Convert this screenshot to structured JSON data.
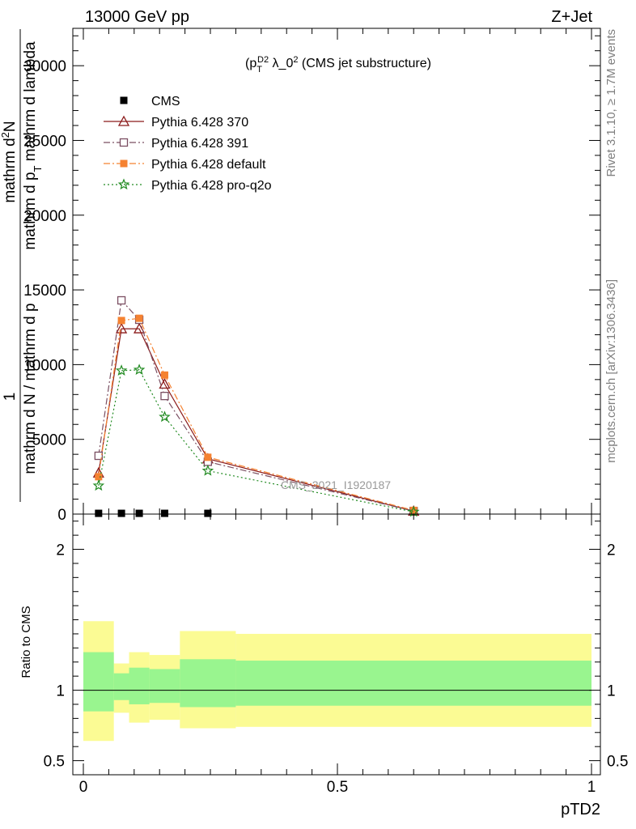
{
  "header": {
    "left": "13000 GeV pp",
    "right": "Z+Jet"
  },
  "side_labels": {
    "rivet": "Rivet 3.1.10, ≥ 1.7M events",
    "mcplots": "mcplots.cern.ch [arXiv:1306.3436]"
  },
  "watermark": "CMS_2021_I1920187",
  "chart_data": [
    {
      "type": "line",
      "title": "(p_T^D)^2 λ_0^2 (CMS jet substructure)",
      "ylabel": "1 / mathrm d N / mathrm d p_T mathrm d^2N / mathrm d p_T mathrm d lambda",
      "xlim": [
        0,
        1
      ],
      "ylim": [
        0,
        32500
      ],
      "x_ticks": [
        0,
        0.5,
        1
      ],
      "y_ticks": [
        {
          "value": 0,
          "label": "0"
        },
        {
          "value": 5000,
          "label": "5000"
        },
        {
          "value": 10000,
          "label": "10000"
        },
        {
          "value": 15000,
          "label": "15000"
        },
        {
          "value": 20000,
          "label": "20000"
        },
        {
          "value": 25000,
          "label": "25000"
        },
        {
          "value": 30000,
          "label": "30000"
        }
      ],
      "legend_position": "top-left",
      "series": [
        {
          "name": "CMS",
          "color": "#000000",
          "marker": "square-filled",
          "line": "none",
          "x": [
            0.03,
            0.075,
            0.11,
            0.16,
            0.245
          ],
          "y": [
            50,
            50,
            50,
            50,
            50
          ]
        },
        {
          "name": "Pythia 6.428 370",
          "color": "#8b1a1a",
          "marker": "triangle-open",
          "line": "solid",
          "x": [
            0.03,
            0.075,
            0.11,
            0.16,
            0.245,
            0.65
          ],
          "y": [
            2750,
            12400,
            12400,
            8700,
            3700,
            200
          ]
        },
        {
          "name": "Pythia 6.428 391",
          "color": "#7b4f62",
          "marker": "square-open",
          "line": "dashdot",
          "x": [
            0.03,
            0.075,
            0.11,
            0.16,
            0.245,
            0.65
          ],
          "y": [
            3900,
            14300,
            13000,
            7900,
            3500,
            200
          ]
        },
        {
          "name": "Pythia 6.428 default",
          "color": "#f58231",
          "marker": "square-filled",
          "line": "dashdot",
          "x": [
            0.03,
            0.075,
            0.11,
            0.16,
            0.245,
            0.65
          ],
          "y": [
            2500,
            12950,
            13100,
            9300,
            3800,
            250
          ]
        },
        {
          "name": "Pythia 6.428 pro-q2o",
          "color": "#228b22",
          "marker": "star",
          "line": "dotted",
          "x": [
            0.03,
            0.075,
            0.11,
            0.16,
            0.245,
            0.65
          ],
          "y": [
            1900,
            9600,
            9650,
            6500,
            2900,
            150
          ]
        }
      ]
    },
    {
      "type": "area",
      "ylabel": "Ratio to CMS",
      "xlabel": "pTD2",
      "xlim": [
        0,
        1
      ],
      "ylim": [
        0.4,
        2.25
      ],
      "x_ticks": [
        {
          "value": 0,
          "label": "0"
        },
        {
          "value": 0.5,
          "label": "0.5"
        },
        {
          "value": 1,
          "label": "1"
        }
      ],
      "y_ticks": [
        {
          "value": 0.5,
          "label": "0.5"
        },
        {
          "value": 1,
          "label": "1"
        },
        {
          "value": 2,
          "label": "2"
        }
      ],
      "reference_line": 1,
      "bands": [
        {
          "x_low": 0.0,
          "x_high": 0.06,
          "stat_low": 0.85,
          "stat_high": 1.27,
          "tot_low": 0.64,
          "tot_high": 1.49
        },
        {
          "x_low": 0.06,
          "x_high": 0.09,
          "stat_low": 0.93,
          "stat_high": 1.12,
          "tot_low": 0.84,
          "tot_high": 1.19
        },
        {
          "x_low": 0.09,
          "x_high": 0.13,
          "stat_low": 0.9,
          "stat_high": 1.16,
          "tot_low": 0.77,
          "tot_high": 1.27
        },
        {
          "x_low": 0.13,
          "x_high": 0.19,
          "stat_low": 0.91,
          "stat_high": 1.15,
          "tot_low": 0.79,
          "tot_high": 1.25
        },
        {
          "x_low": 0.19,
          "x_high": 0.3,
          "stat_low": 0.88,
          "stat_high": 1.22,
          "tot_low": 0.73,
          "tot_high": 1.42
        },
        {
          "x_low": 0.3,
          "x_high": 1.0,
          "stat_low": 0.89,
          "stat_high": 1.21,
          "tot_low": 0.74,
          "tot_high": 1.4
        }
      ],
      "band_colors": {
        "stat": "#99f58f",
        "total": "#fbfb94"
      }
    }
  ]
}
